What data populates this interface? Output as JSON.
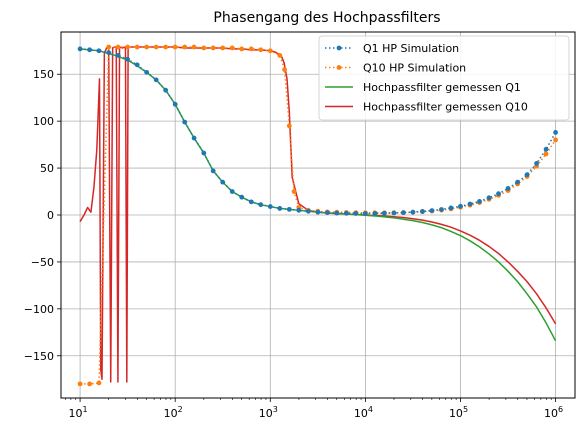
{
  "chart_data": {
    "type": "line",
    "title": "Phasengang des Hochpassfilters",
    "xlabel": "",
    "ylabel": "",
    "xscale": "log",
    "xlim": [
      6.3,
      1600000
    ],
    "ylim": [
      -195,
      195
    ],
    "grid": true,
    "legend_position": "top-right",
    "x_ticks": [
      {
        "value": 10,
        "base": "10",
        "exp": "1"
      },
      {
        "value": 100,
        "base": "10",
        "exp": "2"
      },
      {
        "value": 1000,
        "base": "10",
        "exp": "3"
      },
      {
        "value": 10000,
        "base": "10",
        "exp": "4"
      },
      {
        "value": 100000,
        "base": "10",
        "exp": "5"
      },
      {
        "value": 1000000,
        "base": "10",
        "exp": "6"
      }
    ],
    "y_ticks": [
      {
        "value": 150,
        "label": "150"
      },
      {
        "value": 100,
        "label": "100"
      },
      {
        "value": 50,
        "label": "50"
      },
      {
        "value": 0,
        "label": "0"
      },
      {
        "value": -50,
        "label": "−50"
      },
      {
        "value": -100,
        "label": "−100"
      },
      {
        "value": -150,
        "label": "−150"
      }
    ],
    "series": [
      {
        "name": "Q1 HP Simulation",
        "color": "#1f77b4",
        "style": "dotted-marker",
        "x": [
          10,
          12.6,
          15.8,
          20,
          25.1,
          31.6,
          39.8,
          50.1,
          63.1,
          79.4,
          100,
          126,
          158,
          200,
          251,
          316,
          398,
          501,
          631,
          794,
          1000,
          1259,
          1585,
          1995,
          2512,
          3162,
          3981,
          5012,
          6310,
          7943,
          10000,
          12589,
          15849,
          19953,
          25119,
          31623,
          39811,
          50119,
          63096,
          79433,
          100000,
          125893,
          158489,
          199526,
          251189,
          316228,
          398107,
          501187,
          630957,
          794328,
          1000000
        ],
        "y": [
          177,
          176,
          175,
          173,
          170,
          166,
          160,
          152,
          144,
          133,
          118,
          99,
          82,
          66,
          47,
          35,
          25,
          19,
          14,
          11,
          9,
          7,
          6,
          5,
          4,
          3,
          2.5,
          2,
          1.8,
          1.6,
          1.5,
          1.6,
          1.8,
          2.1,
          2.5,
          3,
          3.8,
          4.7,
          5.9,
          7.5,
          9.3,
          11.7,
          14.5,
          18.3,
          22.7,
          28.3,
          35,
          43,
          55,
          70,
          88
        ]
      },
      {
        "name": "Q10 HP Simulation",
        "color": "#ff7f0e",
        "style": "dotted-marker",
        "x": [
          10,
          12.6,
          15.8,
          20,
          25.1,
          31.6,
          39.8,
          50.1,
          63.1,
          79.4,
          100,
          126,
          158,
          200,
          251,
          316,
          398,
          501,
          631,
          794,
          1000,
          1259,
          1413,
          1585,
          1778,
          1995,
          2512,
          3162,
          3981,
          5012,
          6310,
          7943,
          10000,
          12589,
          15849,
          19953,
          25119,
          31623,
          39811,
          50119,
          63096,
          79433,
          100000,
          125893,
          158489,
          199526,
          251189,
          316228,
          398107,
          501187,
          630957,
          794328,
          1000000
        ],
        "y": [
          -180,
          -180,
          -179,
          179,
          179,
          179,
          179,
          179,
          179,
          179,
          179,
          179,
          179,
          178,
          178,
          178,
          178,
          177,
          177,
          176,
          175,
          170,
          155,
          95,
          25,
          8,
          5,
          4,
          3.3,
          3,
          2.7,
          2.5,
          2.4,
          2.4,
          2.4,
          2.5,
          2.7,
          3,
          3.5,
          4.2,
          5.2,
          6.5,
          8.3,
          10.5,
          13.2,
          16.7,
          21,
          26,
          33,
          41,
          52,
          65,
          80
        ]
      },
      {
        "name": "Hochpassfilter gemessen Q1",
        "color": "#2ca02c",
        "style": "solid",
        "x": [
          10,
          12.6,
          15.8,
          20,
          25.1,
          31.6,
          39.8,
          50.1,
          63.1,
          79.4,
          100,
          126,
          158,
          200,
          251,
          316,
          398,
          501,
          631,
          794,
          1000,
          1259,
          1585,
          1995,
          2512,
          3162,
          3981,
          5012,
          6310,
          7943,
          10000,
          12589,
          15849,
          19953,
          25119,
          31623,
          39811,
          50119,
          63096,
          79433,
          100000,
          125893,
          158489,
          199526,
          251189,
          316228,
          398107,
          501187,
          630957,
          794328,
          1000000
        ],
        "y": [
          177,
          176,
          175,
          172,
          169,
          165,
          159,
          152,
          144,
          133,
          118,
          99,
          82,
          66,
          47,
          35,
          25,
          19,
          14,
          11,
          9,
          7,
          6,
          5,
          4,
          3,
          2.3,
          1.6,
          1,
          0.4,
          -0.3,
          -1,
          -2,
          -3,
          -4.5,
          -6,
          -8,
          -10.5,
          -13.5,
          -17.5,
          -22,
          -27.5,
          -34,
          -41.5,
          -50,
          -60,
          -71,
          -84,
          -98,
          -115,
          -134
        ]
      },
      {
        "name": "Hochpassfilter gemessen Q10",
        "color": "#d62728",
        "style": "solid",
        "x": [
          10,
          11,
          12,
          13,
          14,
          15,
          16,
          16.5,
          17,
          18,
          19,
          20,
          21,
          22,
          23,
          24,
          25,
          26,
          28,
          30,
          31,
          32,
          35,
          40,
          50,
          63.1,
          79.4,
          100,
          126,
          158,
          200,
          251,
          316,
          398,
          501,
          631,
          794,
          1000,
          1100,
          1200,
          1300,
          1400,
          1500,
          1585,
          1700,
          1995,
          2512,
          3162,
          3981,
          5012,
          6310,
          7943,
          10000,
          12589,
          15849,
          19953,
          25119,
          31623,
          39811,
          50119,
          63096,
          79433,
          100000,
          125893,
          158489,
          199526,
          251189,
          316228,
          398107,
          501187,
          630957,
          794328,
          1000000
        ],
        "y": [
          -7,
          0,
          8,
          3,
          30,
          70,
          145,
          -165,
          -175,
          172,
          178,
          179,
          -178,
          178,
          179,
          179,
          -178,
          179,
          178,
          179,
          -178,
          179,
          179,
          179,
          179,
          179,
          179,
          179,
          178,
          178,
          178,
          178,
          178,
          177,
          177,
          176,
          176,
          175,
          174,
          172,
          170,
          162,
          145,
          110,
          40,
          12,
          5,
          3,
          2,
          1.5,
          1,
          0.5,
          0,
          -0.5,
          -1,
          -1.8,
          -2.7,
          -4,
          -5.5,
          -7.5,
          -10,
          -13,
          -17,
          -21.5,
          -27,
          -33.5,
          -41,
          -50,
          -60,
          -71,
          -84,
          -99,
          -116
        ]
      }
    ]
  }
}
